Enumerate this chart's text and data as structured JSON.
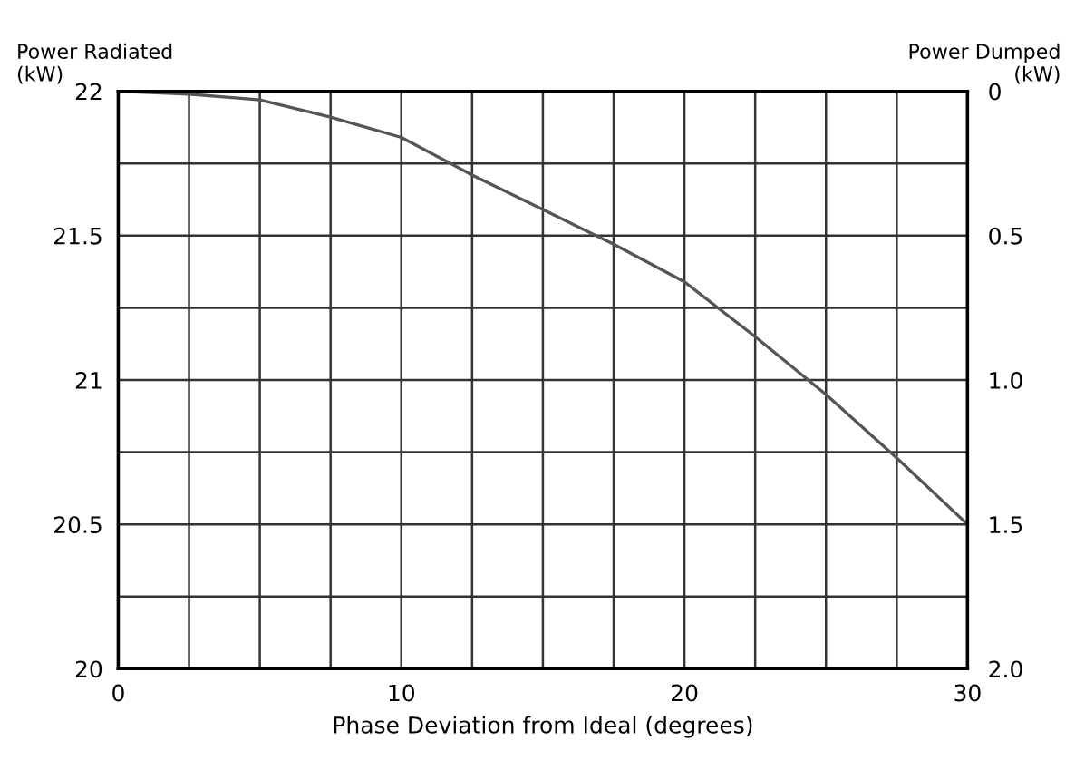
{
  "chart_data": {
    "type": "line",
    "xlabel": "Phase Deviation from Ideal (degrees)",
    "ylabel": "Power Radiated\n(kW)",
    "y2label": "Power Dumped\n(kW)",
    "x": [
      0,
      2.5,
      5,
      7.5,
      10,
      12.5,
      15,
      17.5,
      20,
      22.5,
      25,
      27.5,
      30
    ],
    "series": [
      {
        "color": "#555555",
        "values": [
          22.0,
          21.99,
          21.97,
          21.91,
          21.84,
          21.71,
          21.59,
          21.47,
          21.34,
          21.15,
          20.95,
          20.73,
          20.5
        ]
      }
    ],
    "xlim": [
      0,
      30
    ],
    "xticks": [
      0,
      {
        "value": 2.5,
        "label": null
      },
      {
        "value": 5,
        "label": null
      },
      {
        "value": 7.5,
        "label": null
      },
      10,
      {
        "value": 12.5,
        "label": null
      },
      {
        "value": 15,
        "label": null
      },
      {
        "value": 17.5,
        "label": null
      },
      20,
      {
        "value": 22.5,
        "label": null
      },
      {
        "value": 25,
        "label": null
      },
      {
        "value": 27.5,
        "label": null
      },
      30
    ],
    "ylim": [
      20,
      22
    ],
    "yticks": [
      20,
      {
        "value": 20.25,
        "label": null
      },
      20.5,
      {
        "value": 20.75,
        "label": null
      },
      21,
      {
        "value": 21.25,
        "label": null
      },
      21.5,
      {
        "value": 21.75,
        "label": null
      },
      22
    ],
    "y2lim": [
      2.0,
      0
    ],
    "y2ticks": [
      {
        "value": 2.0,
        "label": "2.0"
      },
      1.5,
      {
        "value": 1.0,
        "label": "1.0"
      },
      0.5,
      0
    ],
    "grid": true,
    "legend": false,
    "marker": "none",
    "line_style": "solid"
  }
}
